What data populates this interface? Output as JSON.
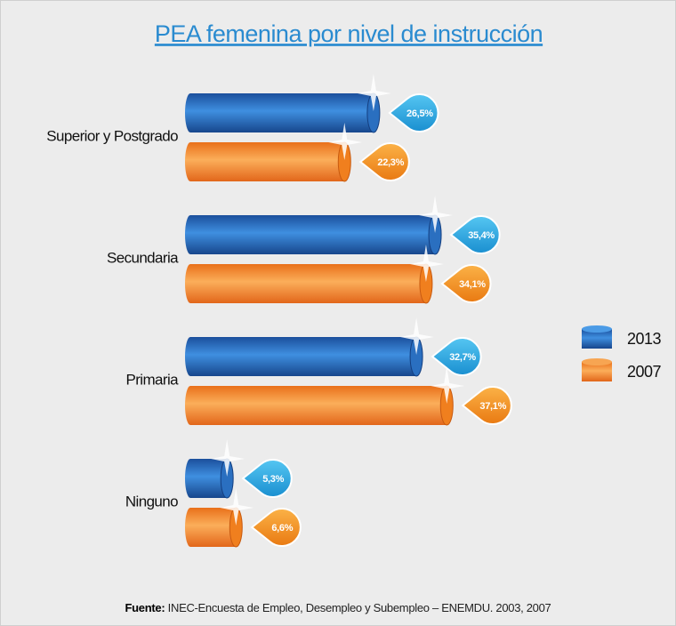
{
  "chart_data": {
    "type": "bar",
    "title": "PEA femenina por nivel de instrucción",
    "categories": [
      "Superior y Postgrado",
      "Secundaria",
      "Primaria",
      "Ninguno"
    ],
    "series": [
      {
        "name": "2013",
        "color": "#2a6fc0",
        "values": [
          26.5,
          35.4,
          32.7,
          5.3
        ],
        "value_labels": [
          "26,5%",
          "35,4%",
          "32,7%",
          "5,3%"
        ]
      },
      {
        "name": "2007",
        "color": "#f07f1e",
        "values": [
          22.3,
          34.1,
          37.1,
          6.6
        ],
        "value_labels": [
          "22,3%",
          "34,1%",
          "37,1%",
          "6,6%"
        ]
      }
    ],
    "source": {
      "label": "Fuente:",
      "text": "INEC-Encuesta de Empleo, Desempleo y Subempleo – ENEMDU. 2003, 2007"
    }
  }
}
